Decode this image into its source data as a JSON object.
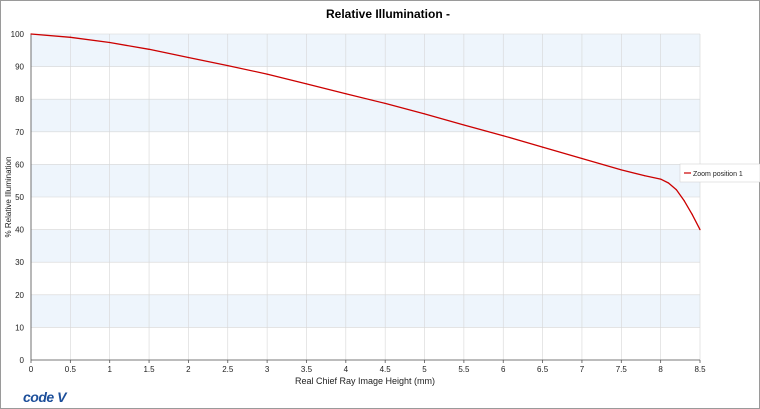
{
  "logo_text": "code V",
  "colors": {
    "line": "#cc0000",
    "band": "#eef5fc",
    "grid": "#d6d6d6",
    "axis": "#555555"
  },
  "chart_data": {
    "type": "line",
    "title": "Relative Illumination -",
    "xlabel": "Real Chief Ray Image Height (mm)",
    "ylabel": "% Relative Illumination",
    "xlim": [
      0,
      8.5
    ],
    "ylim": [
      0,
      100
    ],
    "xticks": [
      0,
      0.5,
      1,
      1.5,
      2,
      2.5,
      3,
      3.5,
      4,
      4.5,
      5,
      5.5,
      6,
      6.5,
      7,
      7.5,
      8,
      8.5
    ],
    "yticks": [
      0,
      10,
      20,
      30,
      40,
      50,
      60,
      70,
      80,
      90,
      100
    ],
    "grid": true,
    "alternating_bands": true,
    "legend_position": "right",
    "series": [
      {
        "name": "Zoom position 1",
        "color": "#cc0000",
        "x": [
          0,
          0.5,
          1,
          1.5,
          2,
          2.5,
          3,
          3.5,
          4,
          4.5,
          5,
          5.5,
          6,
          6.5,
          7,
          7.5,
          7.8,
          8.0,
          8.1,
          8.2,
          8.3,
          8.4,
          8.5
        ],
        "y": [
          100,
          99.0,
          97.4,
          95.3,
          92.8,
          90.3,
          87.7,
          84.7,
          81.7,
          78.7,
          75.5,
          72.1,
          68.8,
          65.3,
          61.8,
          58.3,
          56.5,
          55.5,
          54.3,
          52.2,
          48.8,
          44.7,
          40
        ]
      }
    ]
  }
}
